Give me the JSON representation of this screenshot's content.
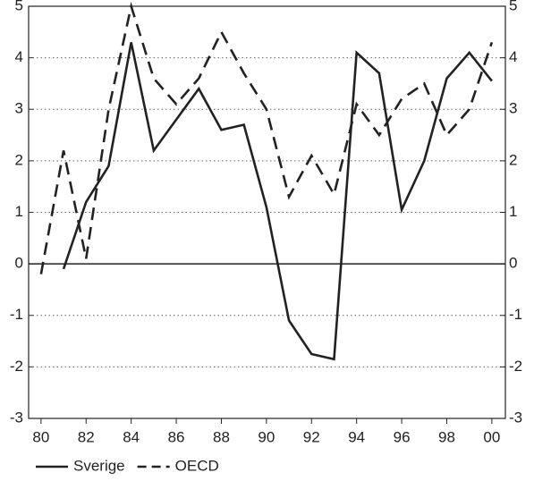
{
  "chart_data": {
    "type": "line",
    "x": [
      80,
      81,
      82,
      83,
      84,
      85,
      86,
      87,
      88,
      89,
      90,
      91,
      92,
      93,
      94,
      95,
      96,
      97,
      98,
      99,
      100
    ],
    "series": [
      {
        "name": "Sverige",
        "color": "#222222",
        "dash": "solid",
        "values": [
          null,
          -0.1,
          1.2,
          1.9,
          4.3,
          2.2,
          2.8,
          3.4,
          2.6,
          2.7,
          1.1,
          -1.1,
          -1.75,
          -1.85,
          4.1,
          3.7,
          1.05,
          2.0,
          3.6,
          4.1,
          3.55
        ]
      },
      {
        "name": "OECD",
        "color": "#222222",
        "dash": "dashed",
        "values": [
          -0.2,
          2.2,
          0.1,
          3.0,
          5.0,
          3.6,
          3.1,
          3.6,
          4.5,
          3.7,
          3.0,
          1.3,
          2.1,
          1.35,
          3.1,
          2.5,
          3.2,
          3.5,
          2.5,
          3.0,
          4.3
        ]
      }
    ],
    "xlim": [
      79.45,
      100.6
    ],
    "xticks": [
      80,
      82,
      84,
      86,
      88,
      90,
      92,
      94,
      96,
      98,
      {
        "value": 100,
        "label": "00"
      }
    ],
    "ylim": [
      -3,
      5
    ],
    "yticks": [
      -3,
      -2,
      -1,
      0,
      1,
      2,
      3,
      4,
      5
    ],
    "y2lim": [
      -3,
      5
    ],
    "y2ticks": [
      -3,
      -2,
      -1,
      0,
      1,
      2,
      3,
      4,
      5
    ],
    "grid": true,
    "legend": "bottom-left"
  }
}
